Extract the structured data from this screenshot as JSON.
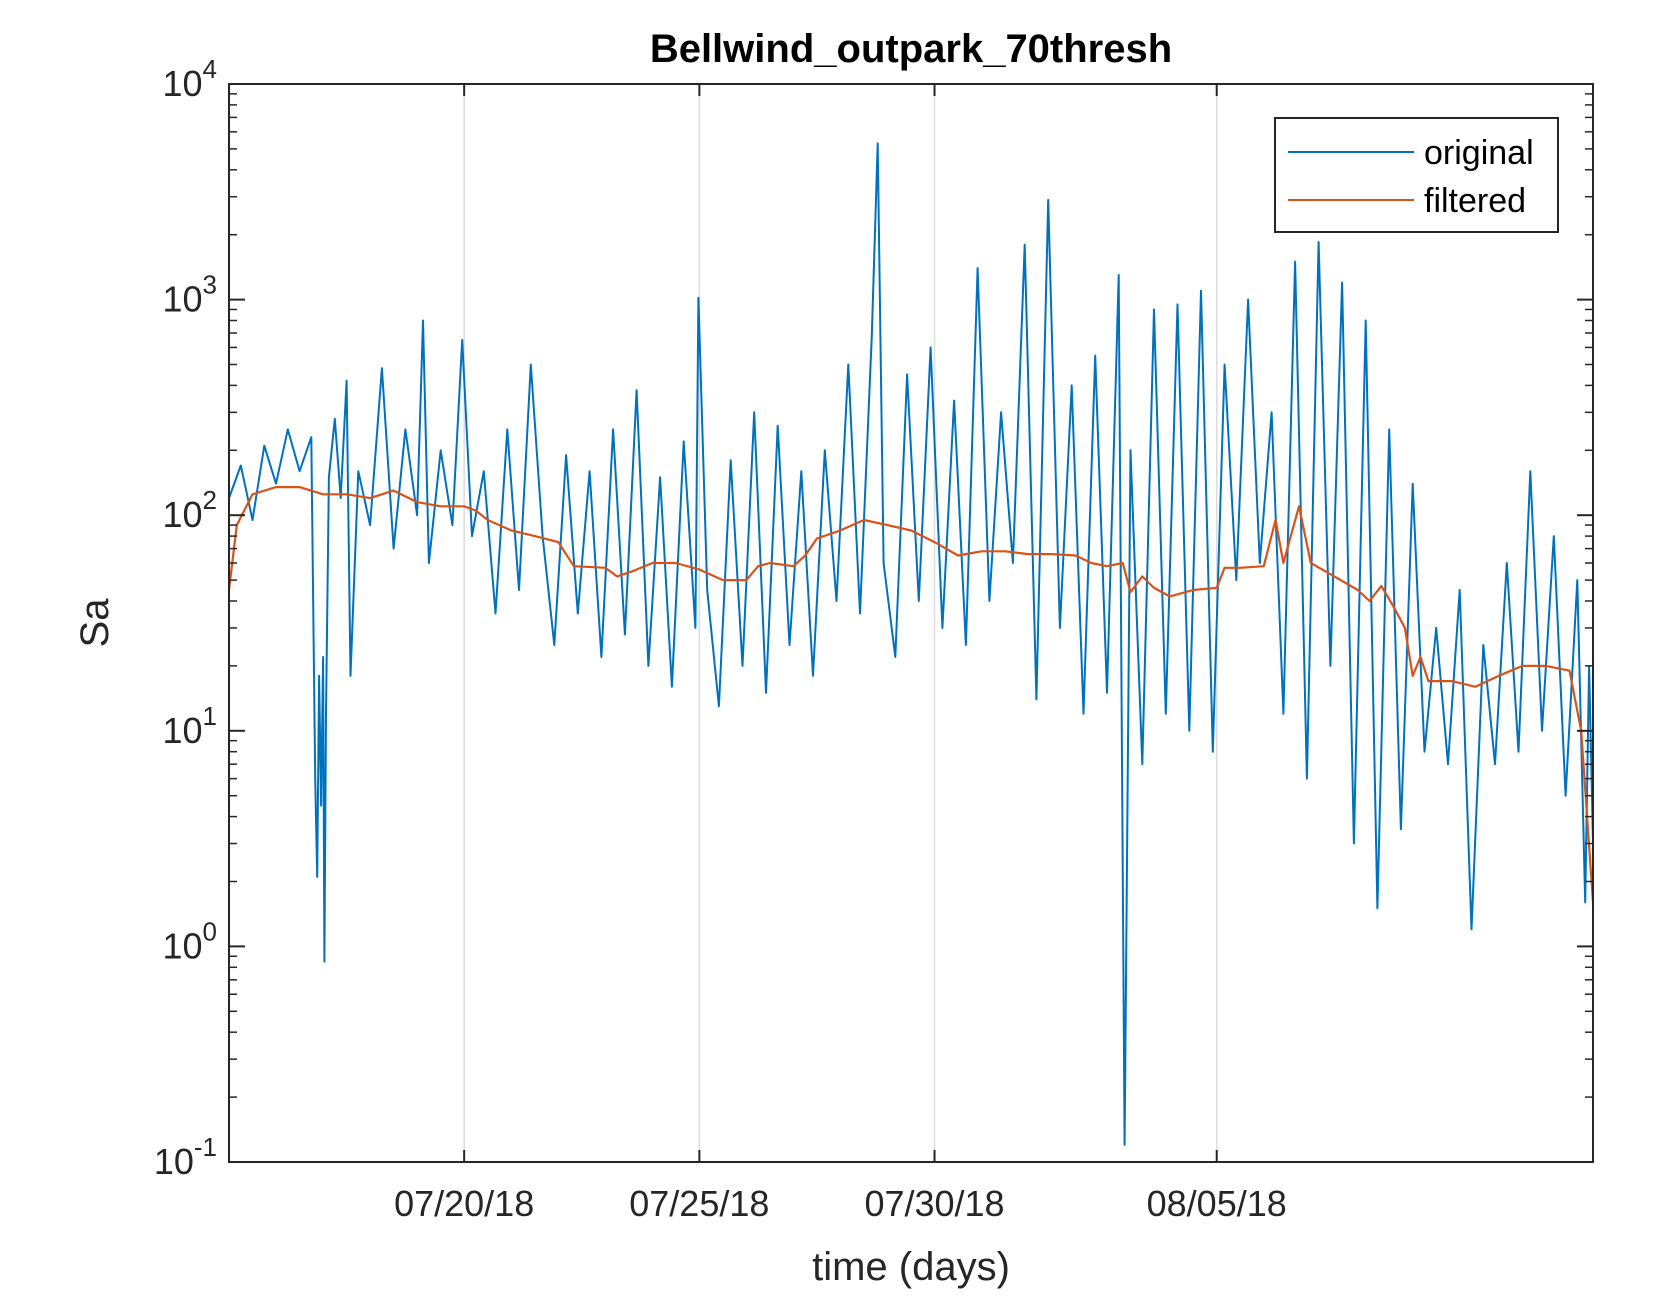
{
  "chart_data": {
    "type": "line",
    "title": "Bellwind_outpark_70thresh",
    "xlabel": "time (days)",
    "ylabel": "Sa",
    "yscale": "log",
    "ylim": [
      0.1,
      10000
    ],
    "xlim": [
      "2018-07-15",
      "2018-08-13"
    ],
    "y_ticks": [
      {
        "value": 0.1,
        "base": "10",
        "exp": "-1"
      },
      {
        "value": 1,
        "base": "10",
        "exp": "0"
      },
      {
        "value": 10,
        "base": "10",
        "exp": "1"
      },
      {
        "value": 100,
        "base": "10",
        "exp": "2"
      },
      {
        "value": 1000,
        "base": "10",
        "exp": "3"
      },
      {
        "value": 10000,
        "base": "10",
        "exp": "4"
      }
    ],
    "x_ticks": [
      {
        "date": "2018-07-20",
        "label": "07/20/18"
      },
      {
        "date": "2018-07-25",
        "label": "07/25/18"
      },
      {
        "date": "2018-07-30",
        "label": "07/30/18"
      },
      {
        "date": "2018-08-05",
        "label": "08/05/18"
      }
    ],
    "grid": "vertical lines at x ticks",
    "legend": {
      "position": "top-right"
    },
    "series": [
      {
        "name": "original",
        "color": "#0072BD",
        "points": [
          [
            "2018-07-15",
            120
          ],
          [
            "2018-07-15 06:00",
            170
          ],
          [
            "2018-07-15 12:00",
            95
          ],
          [
            "2018-07-15 18:00",
            210
          ],
          [
            "2018-07-16",
            140
          ],
          [
            "2018-07-16 06:00",
            250
          ],
          [
            "2018-07-16 12:00",
            160
          ],
          [
            "2018-07-16 18:00",
            230
          ],
          [
            "2018-07-16 20:00",
            6
          ],
          [
            "2018-07-16 21:00",
            2.1
          ],
          [
            "2018-07-16 22:00",
            18
          ],
          [
            "2018-07-16 23:00",
            4.5
          ],
          [
            "2018-07-17",
            22
          ],
          [
            "2018-07-17 00:40",
            0.85
          ],
          [
            "2018-07-17 01:30",
            12
          ],
          [
            "2018-07-17 03:00",
            150
          ],
          [
            "2018-07-17 06:00",
            280
          ],
          [
            "2018-07-17 09:00",
            120
          ],
          [
            "2018-07-17 12:00",
            420
          ],
          [
            "2018-07-17 14:00",
            18
          ],
          [
            "2018-07-17 18:00",
            160
          ],
          [
            "2018-07-18",
            90
          ],
          [
            "2018-07-18 06:00",
            480
          ],
          [
            "2018-07-18 12:00",
            70
          ],
          [
            "2018-07-18 18:00",
            250
          ],
          [
            "2018-07-19",
            100
          ],
          [
            "2018-07-19 03:00",
            800
          ],
          [
            "2018-07-19 06:00",
            60
          ],
          [
            "2018-07-19 12:00",
            200
          ],
          [
            "2018-07-19 18:00",
            90
          ],
          [
            "2018-07-19 23:00",
            650
          ],
          [
            "2018-07-20 04:00",
            80
          ],
          [
            "2018-07-20 10:00",
            160
          ],
          [
            "2018-07-20 16:00",
            35
          ],
          [
            "2018-07-20 22:00",
            250
          ],
          [
            "2018-07-21 04:00",
            45
          ],
          [
            "2018-07-21 10:00",
            500
          ],
          [
            "2018-07-21 16:00",
            80
          ],
          [
            "2018-07-21 22:00",
            25
          ],
          [
            "2018-07-22 04:00",
            190
          ],
          [
            "2018-07-22 10:00",
            35
          ],
          [
            "2018-07-22 16:00",
            160
          ],
          [
            "2018-07-22 22:00",
            22
          ],
          [
            "2018-07-23 04:00",
            250
          ],
          [
            "2018-07-23 10:00",
            28
          ],
          [
            "2018-07-23 16:00",
            380
          ],
          [
            "2018-07-23 22:00",
            20
          ],
          [
            "2018-07-24 04:00",
            150
          ],
          [
            "2018-07-24 10:00",
            16
          ],
          [
            "2018-07-24 16:00",
            220
          ],
          [
            "2018-07-24 22:00",
            30
          ],
          [
            "2018-07-24 23:30",
            1020
          ],
          [
            "2018-07-25 04:00",
            45
          ],
          [
            "2018-07-25 10:00",
            13
          ],
          [
            "2018-07-25 16:00",
            180
          ],
          [
            "2018-07-25 22:00",
            20
          ],
          [
            "2018-07-26 04:00",
            300
          ],
          [
            "2018-07-26 10:00",
            15
          ],
          [
            "2018-07-26 16:00",
            260
          ],
          [
            "2018-07-26 22:00",
            25
          ],
          [
            "2018-07-27 04:00",
            160
          ],
          [
            "2018-07-27 10:00",
            18
          ],
          [
            "2018-07-27 16:00",
            200
          ],
          [
            "2018-07-27 22:00",
            40
          ],
          [
            "2018-07-28 04:00",
            500
          ],
          [
            "2018-07-28 10:00",
            35
          ],
          [
            "2018-07-28 16:00",
            680
          ],
          [
            "2018-07-28 19:00",
            5300
          ],
          [
            "2018-07-28 22:00",
            60
          ],
          [
            "2018-07-29 04:00",
            22
          ],
          [
            "2018-07-29 10:00",
            450
          ],
          [
            "2018-07-29 16:00",
            40
          ],
          [
            "2018-07-29 22:00",
            600
          ],
          [
            "2018-07-30 04:00",
            30
          ],
          [
            "2018-07-30 10:00",
            340
          ],
          [
            "2018-07-30 16:00",
            25
          ],
          [
            "2018-07-30 22:00",
            1400
          ],
          [
            "2018-07-31 04:00",
            40
          ],
          [
            "2018-07-31 10:00",
            300
          ],
          [
            "2018-07-31 16:00",
            60
          ],
          [
            "2018-07-31 22:00",
            1800
          ],
          [
            "2018-08-01 04:00",
            14
          ],
          [
            "2018-08-01 10:00",
            2900
          ],
          [
            "2018-08-01 16:00",
            30
          ],
          [
            "2018-08-01 22:00",
            400
          ],
          [
            "2018-08-02 04:00",
            12
          ],
          [
            "2018-08-02 10:00",
            550
          ],
          [
            "2018-08-02 16:00",
            15
          ],
          [
            "2018-08-02 22:00",
            1300
          ],
          [
            "2018-08-03 01:00",
            0.12
          ],
          [
            "2018-08-03 04:00",
            200
          ],
          [
            "2018-08-03 10:00",
            7
          ],
          [
            "2018-08-03 16:00",
            900
          ],
          [
            "2018-08-03 22:00",
            12
          ],
          [
            "2018-08-04 04:00",
            950
          ],
          [
            "2018-08-04 10:00",
            10
          ],
          [
            "2018-08-04 16:00",
            1100
          ],
          [
            "2018-08-04 22:00",
            8
          ],
          [
            "2018-08-05 04:00",
            500
          ],
          [
            "2018-08-05 10:00",
            50
          ],
          [
            "2018-08-05 16:00",
            1000
          ],
          [
            "2018-08-05 22:00",
            60
          ],
          [
            "2018-08-06 04:00",
            300
          ],
          [
            "2018-08-06 10:00",
            12
          ],
          [
            "2018-08-06 16:00",
            1500
          ],
          [
            "2018-08-06 22:00",
            6
          ],
          [
            "2018-08-07 04:00",
            1850
          ],
          [
            "2018-08-07 10:00",
            20
          ],
          [
            "2018-08-07 16:00",
            1200
          ],
          [
            "2018-08-07 22:00",
            3
          ],
          [
            "2018-08-08 04:00",
            800
          ],
          [
            "2018-08-08 10:00",
            1.5
          ],
          [
            "2018-08-08 16:00",
            250
          ],
          [
            "2018-08-08 22:00",
            3.5
          ],
          [
            "2018-08-09 04:00",
            140
          ],
          [
            "2018-08-09 10:00",
            8
          ],
          [
            "2018-08-09 16:00",
            30
          ],
          [
            "2018-08-09 22:00",
            7
          ],
          [
            "2018-08-10 04:00",
            45
          ],
          [
            "2018-08-10 10:00",
            1.2
          ],
          [
            "2018-08-10 16:00",
            25
          ],
          [
            "2018-08-10 22:00",
            7
          ],
          [
            "2018-08-11 04:00",
            60
          ],
          [
            "2018-08-11 10:00",
            8
          ],
          [
            "2018-08-11 16:00",
            160
          ],
          [
            "2018-08-11 22:00",
            10
          ],
          [
            "2018-08-12 04:00",
            80
          ],
          [
            "2018-08-12 10:00",
            5
          ],
          [
            "2018-08-12 16:00",
            50
          ],
          [
            "2018-08-12 20:00",
            1.6
          ],
          [
            "2018-08-12 22:00",
            20
          ],
          [
            "2018-08-13",
            3
          ]
        ]
      },
      {
        "name": "filtered",
        "color": "#D95319",
        "points": [
          [
            "2018-07-15",
            45
          ],
          [
            "2018-07-15 04:00",
            90
          ],
          [
            "2018-07-15 12:00",
            125
          ],
          [
            "2018-07-16",
            135
          ],
          [
            "2018-07-16 12:00",
            135
          ],
          [
            "2018-07-17",
            125
          ],
          [
            "2018-07-17 12:00",
            125
          ],
          [
            "2018-07-18",
            120
          ],
          [
            "2018-07-18 12:00",
            130
          ],
          [
            "2018-07-19",
            115
          ],
          [
            "2018-07-19 12:00",
            110
          ],
          [
            "2018-07-20",
            110
          ],
          [
            "2018-07-20 06:00",
            105
          ],
          [
            "2018-07-20 12:00",
            95
          ],
          [
            "2018-07-21",
            85
          ],
          [
            "2018-07-21 12:00",
            80
          ],
          [
            "2018-07-22",
            75
          ],
          [
            "2018-07-22 08:00",
            58
          ],
          [
            "2018-07-23",
            57
          ],
          [
            "2018-07-23 06:00",
            52
          ],
          [
            "2018-07-23 14:00",
            55
          ],
          [
            "2018-07-24",
            60
          ],
          [
            "2018-07-24 12:00",
            60
          ],
          [
            "2018-07-25",
            56
          ],
          [
            "2018-07-25 12:00",
            50
          ],
          [
            "2018-07-26",
            50
          ],
          [
            "2018-07-26 06:00",
            58
          ],
          [
            "2018-07-26 12:00",
            60
          ],
          [
            "2018-07-27",
            58
          ],
          [
            "2018-07-27 06:00",
            65
          ],
          [
            "2018-07-27 12:00",
            78
          ],
          [
            "2018-07-28",
            85
          ],
          [
            "2018-07-28 12:00",
            95
          ],
          [
            "2018-07-29",
            90
          ],
          [
            "2018-07-29 12:00",
            85
          ],
          [
            "2018-07-30",
            75
          ],
          [
            "2018-07-30 12:00",
            65
          ],
          [
            "2018-07-31",
            68
          ],
          [
            "2018-07-31 12:00",
            68
          ],
          [
            "2018-08-01",
            66
          ],
          [
            "2018-08-01 12:00",
            66
          ],
          [
            "2018-08-02",
            65
          ],
          [
            "2018-08-02 08:00",
            60
          ],
          [
            "2018-08-02 16:00",
            58
          ],
          [
            "2018-08-03",
            60
          ],
          [
            "2018-08-03 04:00",
            44
          ],
          [
            "2018-08-03 10:00",
            52
          ],
          [
            "2018-08-03 16:00",
            46
          ],
          [
            "2018-08-04",
            42
          ],
          [
            "2018-08-04 12:00",
            45
          ],
          [
            "2018-08-05",
            46
          ],
          [
            "2018-08-05 04:00",
            57
          ],
          [
            "2018-08-05 12:00",
            57
          ],
          [
            "2018-08-06",
            58
          ],
          [
            "2018-08-06 06:00",
            95
          ],
          [
            "2018-08-06 10:00",
            60
          ],
          [
            "2018-08-06 18:00",
            110
          ],
          [
            "2018-08-07",
            60
          ],
          [
            "2018-08-07 12:00",
            52
          ],
          [
            "2018-08-08",
            45
          ],
          [
            "2018-08-08 06:00",
            40
          ],
          [
            "2018-08-08 12:00",
            47
          ],
          [
            "2018-08-08 18:00",
            38
          ],
          [
            "2018-08-09",
            30
          ],
          [
            "2018-08-09 04:00",
            18
          ],
          [
            "2018-08-09 08:00",
            22
          ],
          [
            "2018-08-09 12:00",
            17
          ],
          [
            "2018-08-10",
            17
          ],
          [
            "2018-08-10 12:00",
            16
          ],
          [
            "2018-08-11",
            18
          ],
          [
            "2018-08-11 12:00",
            20
          ],
          [
            "2018-08-12",
            20
          ],
          [
            "2018-08-12 12:00",
            19
          ],
          [
            "2018-08-12 18:00",
            10
          ],
          [
            "2018-08-13",
            1.6
          ]
        ]
      }
    ]
  }
}
